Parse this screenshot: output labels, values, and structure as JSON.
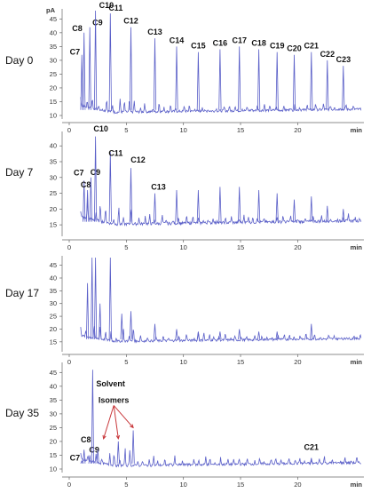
{
  "colors": {
    "trace": "#5a5fc8",
    "axis": "#666666",
    "arrow": "#c8373a",
    "text": "#111111"
  },
  "chart_data": [
    {
      "type": "line",
      "day_label": "Day 0",
      "ylabel": "pA",
      "xlabel": "min",
      "y_ticks": [
        10,
        15,
        20,
        25,
        30,
        35,
        40,
        45
      ],
      "x_ticks": [
        0,
        5,
        10,
        15,
        20
      ],
      "ylim": [
        10,
        48
      ],
      "xlim": [
        0,
        25.8
      ],
      "baseline": 11,
      "peaks": [
        {
          "label": "C7",
          "x": 1.1,
          "y": 32
        },
        {
          "label": "C8",
          "x": 1.3,
          "y": 40
        },
        {
          "label": "C9",
          "x": 1.8,
          "y": 42
        },
        {
          "label": "C10",
          "x": 2.3,
          "y": 48
        },
        {
          "label": "C11",
          "x": 3.6,
          "y": 47
        },
        {
          "label": "C12",
          "x": 5.4,
          "y": 42
        },
        {
          "label": "C13",
          "x": 7.5,
          "y": 38
        },
        {
          "label": "C14",
          "x": 9.4,
          "y": 35
        },
        {
          "label": "C15",
          "x": 11.3,
          "y": 33
        },
        {
          "label": "C16",
          "x": 13.2,
          "y": 34
        },
        {
          "label": "C17",
          "x": 14.9,
          "y": 35
        },
        {
          "label": "C18",
          "x": 16.6,
          "y": 34
        },
        {
          "label": "C19",
          "x": 18.2,
          "y": 33
        },
        {
          "label": "C20",
          "x": 19.7,
          "y": 32
        },
        {
          "label": "C21",
          "x": 21.2,
          "y": 33
        },
        {
          "label": "C22",
          "x": 22.6,
          "y": 30
        },
        {
          "label": "C23",
          "x": 24.0,
          "y": 28
        }
      ]
    },
    {
      "type": "line",
      "day_label": "Day 7",
      "y_ticks": [
        15,
        20,
        25,
        30,
        35,
        40
      ],
      "x_ticks": [
        0,
        5,
        10,
        15,
        20
      ],
      "xlabel": "min",
      "ylim": [
        12.5,
        44
      ],
      "xlim": [
        0,
        25.8
      ],
      "baseline": 15,
      "peaks": [
        {
          "label": "C7",
          "x": 1.3,
          "y": 29
        },
        {
          "label": "C8",
          "x": 1.6,
          "y": 26
        },
        {
          "label": "C9",
          "x": 1.9,
          "y": 30
        },
        {
          "label": "C10",
          "x": 2.3,
          "y": 43
        },
        {
          "label": "C11",
          "x": 3.6,
          "y": 38
        },
        {
          "label": "C12",
          "x": 5.4,
          "y": 33
        },
        {
          "label": "C13",
          "x": 7.5,
          "y": 25
        },
        {
          "label": "",
          "x": 9.4,
          "y": 26
        },
        {
          "label": "",
          "x": 11.3,
          "y": 26
        },
        {
          "label": "",
          "x": 13.2,
          "y": 27
        },
        {
          "label": "",
          "x": 14.9,
          "y": 27
        },
        {
          "label": "",
          "x": 16.6,
          "y": 26
        },
        {
          "label": "",
          "x": 18.2,
          "y": 25
        },
        {
          "label": "",
          "x": 19.7,
          "y": 23
        },
        {
          "label": "",
          "x": 21.2,
          "y": 24
        },
        {
          "label": "",
          "x": 22.6,
          "y": 21
        },
        {
          "label": "",
          "x": 24.0,
          "y": 20
        }
      ]
    },
    {
      "type": "line",
      "day_label": "Day 17",
      "y_ticks": [
        15,
        20,
        25,
        30,
        35,
        40,
        45
      ],
      "x_ticks": [
        0,
        5,
        10,
        15,
        20
      ],
      "xlabel": "min",
      "ylim": [
        12.5,
        48
      ],
      "xlim": [
        0,
        25.8
      ],
      "baseline": 15,
      "peaks": [
        {
          "label": "",
          "x": 1.6,
          "y": 38
        },
        {
          "label": "",
          "x": 2.0,
          "y": 48
        },
        {
          "label": "",
          "x": 2.3,
          "y": 48
        },
        {
          "label": "",
          "x": 2.7,
          "y": 30
        },
        {
          "label": "",
          "x": 3.6,
          "y": 48
        },
        {
          "label": "",
          "x": 4.6,
          "y": 26
        },
        {
          "label": "",
          "x": 5.4,
          "y": 27
        },
        {
          "label": "",
          "x": 7.5,
          "y": 22
        },
        {
          "label": "",
          "x": 9.4,
          "y": 20
        },
        {
          "label": "",
          "x": 11.3,
          "y": 19
        },
        {
          "label": "",
          "x": 13.2,
          "y": 19
        },
        {
          "label": "",
          "x": 14.9,
          "y": 20
        },
        {
          "label": "",
          "x": 16.6,
          "y": 19
        },
        {
          "label": "",
          "x": 18.2,
          "y": 19
        },
        {
          "label": "",
          "x": 21.2,
          "y": 22
        }
      ]
    },
    {
      "type": "line",
      "day_label": "Day 35",
      "y_ticks": [
        10,
        15,
        20,
        25,
        30,
        35,
        40,
        45
      ],
      "x_ticks": [
        0,
        5,
        10,
        15,
        20
      ],
      "xlabel": "min",
      "ylim": [
        10,
        48
      ],
      "xlim": [
        0,
        25.8
      ],
      "baseline": 11,
      "peaks": [
        {
          "label": "C7",
          "x": 1.1,
          "y": 13
        },
        {
          "label": "C8",
          "x": 1.3,
          "y": 17
        },
        {
          "label": "C9",
          "x": 1.8,
          "y": 15
        },
        {
          "label": "Solvent",
          "x": 2.05,
          "y": 46
        },
        {
          "label": "",
          "x": 2.5,
          "y": 17
        },
        {
          "label": "",
          "x": 4.3,
          "y": 20
        },
        {
          "label": "",
          "x": 5.6,
          "y": 24
        },
        {
          "label": "C21",
          "x": 21.2,
          "y": 14
        }
      ],
      "annotation": {
        "text": "Isomers",
        "arrow_targets": [
          {
            "x": 3.0,
            "y": 21
          },
          {
            "x": 4.3,
            "y": 21
          },
          {
            "x": 5.6,
            "y": 25
          }
        ]
      }
    }
  ]
}
